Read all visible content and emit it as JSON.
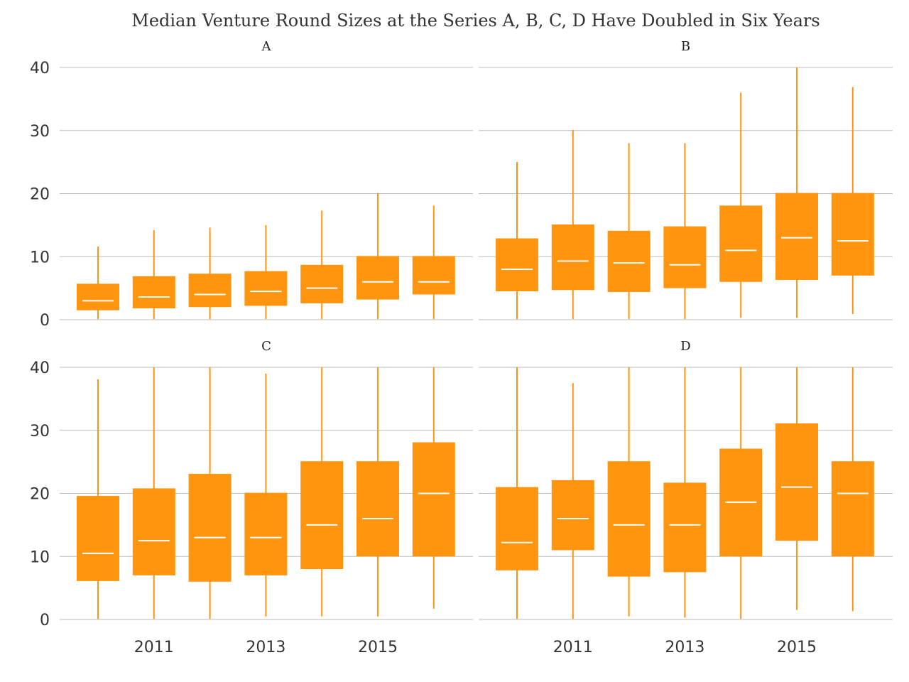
{
  "colors": {
    "box": "#FF950E",
    "median": "#FFFFFF",
    "grid": "#BDBDBD",
    "text": "#333333"
  },
  "chart_data": {
    "type": "boxplot",
    "title": "Median Venture Round Sizes at the Series A, B, C, D Have Doubled in Six Years",
    "ylim": [
      0,
      40
    ],
    "yticks": [
      "0",
      "10",
      "20",
      "30",
      "40"
    ],
    "years": [
      2010,
      2011,
      2012,
      2013,
      2014,
      2015,
      2016
    ],
    "xticks": [
      "2011",
      "2013",
      "2015"
    ],
    "grid": "horizontal",
    "panels": [
      {
        "name": "A",
        "boxes": [
          {
            "year": 2010,
            "low": 0.1,
            "q1": 1.5,
            "median": 3.0,
            "q3": 5.7,
            "high": 11.6
          },
          {
            "year": 2011,
            "low": 0.1,
            "q1": 1.8,
            "median": 3.6,
            "q3": 6.9,
            "high": 14.2
          },
          {
            "year": 2012,
            "low": 0.1,
            "q1": 2.0,
            "median": 4.0,
            "q3": 7.3,
            "high": 14.6
          },
          {
            "year": 2013,
            "low": 0.1,
            "q1": 2.2,
            "median": 4.5,
            "q3": 7.7,
            "high": 15.0
          },
          {
            "year": 2014,
            "low": 0.1,
            "q1": 2.6,
            "median": 5.0,
            "q3": 8.7,
            "high": 17.3
          },
          {
            "year": 2015,
            "low": 0.1,
            "q1": 3.2,
            "median": 6.0,
            "q3": 10.1,
            "high": 20.1
          },
          {
            "year": 2016,
            "low": 0.1,
            "q1": 4.0,
            "median": 6.0,
            "q3": 10.1,
            "high": 18.1
          }
        ]
      },
      {
        "name": "B",
        "boxes": [
          {
            "year": 2010,
            "low": 0.1,
            "q1": 4.5,
            "median": 8.0,
            "q3": 12.9,
            "high": 25.0
          },
          {
            "year": 2011,
            "low": 0.1,
            "q1": 4.7,
            "median": 9.3,
            "q3": 15.1,
            "high": 30.1
          },
          {
            "year": 2012,
            "low": 0.1,
            "q1": 4.4,
            "median": 9.0,
            "q3": 14.1,
            "high": 28.0
          },
          {
            "year": 2013,
            "low": 0.1,
            "q1": 5.0,
            "median": 8.7,
            "q3": 14.8,
            "high": 28.0
          },
          {
            "year": 2014,
            "low": 0.3,
            "q1": 6.0,
            "median": 11.0,
            "q3": 18.1,
            "high": 36.0
          },
          {
            "year": 2015,
            "low": 0.3,
            "q1": 6.3,
            "median": 13.0,
            "q3": 20.1,
            "high": 40.0
          },
          {
            "year": 2016,
            "low": 0.9,
            "q1": 7.0,
            "median": 12.5,
            "q3": 20.1,
            "high": 36.9
          }
        ]
      },
      {
        "name": "C",
        "boxes": [
          {
            "year": 2010,
            "low": 0.1,
            "q1": 6.1,
            "median": 10.5,
            "q3": 19.6,
            "high": 38.1
          },
          {
            "year": 2011,
            "low": 0.1,
            "q1": 7.0,
            "median": 12.5,
            "q3": 20.8,
            "high": 40.0
          },
          {
            "year": 2012,
            "low": 0.1,
            "q1": 6.0,
            "median": 13.0,
            "q3": 23.1,
            "high": 40.0
          },
          {
            "year": 2013,
            "low": 0.5,
            "q1": 7.0,
            "median": 13.0,
            "q3": 20.1,
            "high": 39.0
          },
          {
            "year": 2014,
            "low": 0.5,
            "q1": 8.0,
            "median": 15.0,
            "q3": 25.1,
            "high": 40.0
          },
          {
            "year": 2015,
            "low": 0.5,
            "q1": 10.0,
            "median": 16.0,
            "q3": 25.1,
            "high": 40.0
          },
          {
            "year": 2016,
            "low": 1.7,
            "q1": 10.0,
            "median": 20.0,
            "q3": 28.1,
            "high": 40.0
          }
        ]
      },
      {
        "name": "D",
        "boxes": [
          {
            "year": 2010,
            "low": 0.1,
            "q1": 7.8,
            "median": 12.2,
            "q3": 21.0,
            "high": 40.0
          },
          {
            "year": 2011,
            "low": 0.1,
            "q1": 11.0,
            "median": 16.0,
            "q3": 22.1,
            "high": 37.5
          },
          {
            "year": 2012,
            "low": 0.5,
            "q1": 6.8,
            "median": 15.0,
            "q3": 25.1,
            "high": 40.0
          },
          {
            "year": 2013,
            "low": 0.3,
            "q1": 7.5,
            "median": 15.0,
            "q3": 21.7,
            "high": 40.0
          },
          {
            "year": 2014,
            "low": 0.1,
            "q1": 10.0,
            "median": 18.6,
            "q3": 27.1,
            "high": 40.0
          },
          {
            "year": 2015,
            "low": 1.5,
            "q1": 12.5,
            "median": 21.0,
            "q3": 31.1,
            "high": 40.0
          },
          {
            "year": 2016,
            "low": 1.3,
            "q1": 10.0,
            "median": 20.0,
            "q3": 25.1,
            "high": 40.0
          }
        ]
      }
    ]
  }
}
